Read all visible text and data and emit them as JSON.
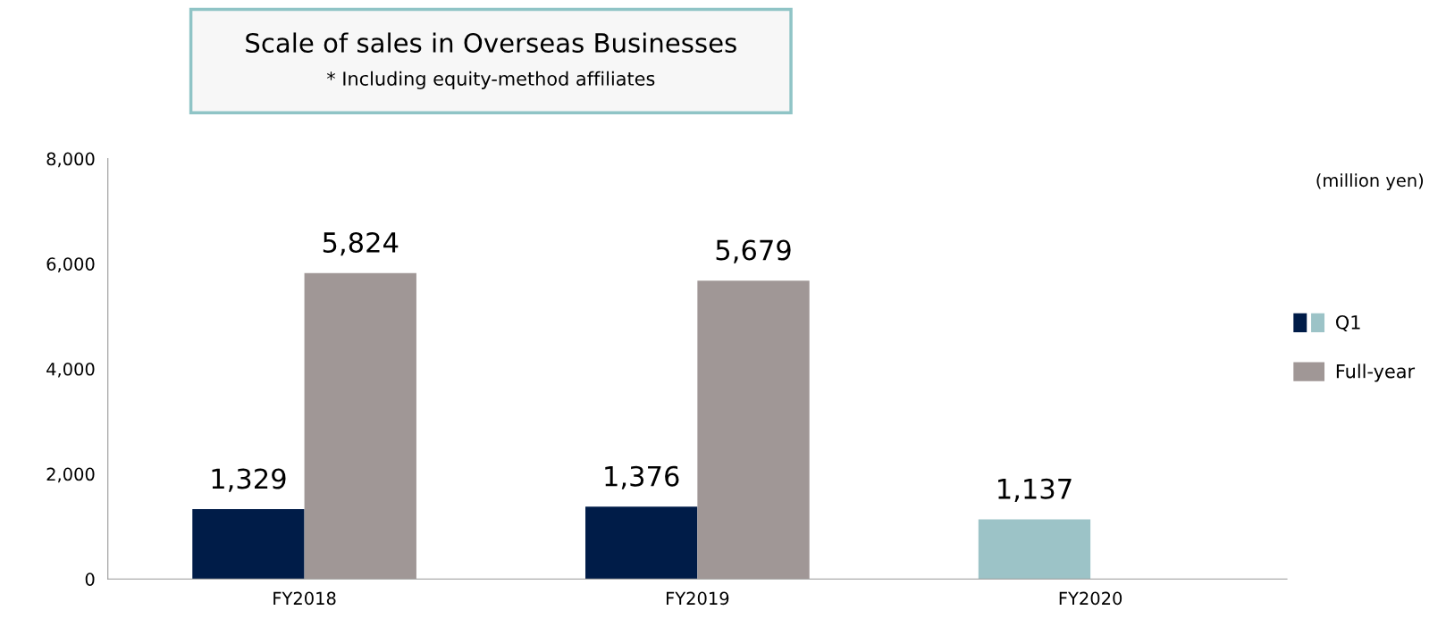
{
  "chart_data": {
    "type": "bar",
    "title": "Scale of sales in Overseas Businesses",
    "subtitle": "* Including equity-method affiliates",
    "annotations": [
      "(million yen)"
    ],
    "categories": [
      "FY2018",
      "FY2019",
      "FY2020"
    ],
    "series": [
      {
        "name": "Q1",
        "colors": [
          "#001c48",
          "#001c48",
          "#9cc3c7"
        ],
        "values": [
          1329,
          1376,
          1137
        ],
        "value_labels": [
          "1,329",
          "1,376",
          "1,137"
        ]
      },
      {
        "name": "Full-year",
        "color": "#a09796",
        "values": [
          5824,
          5679,
          null
        ],
        "value_labels": [
          "5,824",
          "5,679",
          null
        ]
      }
    ],
    "ylim": [
      0,
      8000
    ],
    "yticks": [
      {
        "value": 0,
        "label": "0"
      },
      {
        "value": 2000,
        "label": "2,000"
      },
      {
        "value": 4000,
        "label": "4,000"
      },
      {
        "value": 6000,
        "label": "6,000"
      },
      {
        "value": 8000,
        "label": "8,000"
      }
    ],
    "grid": false,
    "legend": "right"
  }
}
